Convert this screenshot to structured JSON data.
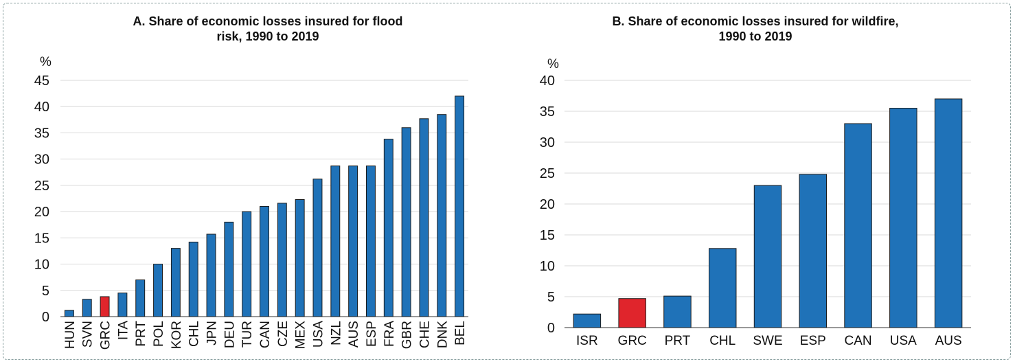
{
  "chart_data": [
    {
      "type": "bar",
      "title_line1": "A. Share of economic losses insured for flood",
      "title_line2": "risk, 1990 to 2019",
      "ylabel": "%",
      "ylim": [
        0,
        45
      ],
      "yticks": [
        0,
        5,
        10,
        15,
        20,
        25,
        30,
        35,
        40,
        45
      ],
      "grid": true,
      "categories": [
        "HUN",
        "SVN",
        "GRC",
        "ITA",
        "PRT",
        "POL",
        "KOR",
        "CHL",
        "JPN",
        "DEU",
        "TUR",
        "CAN",
        "CZE",
        "MEX",
        "USA",
        "NZL",
        "AUS",
        "ESP",
        "FRA",
        "GBR",
        "CHE",
        "DNK",
        "BEL"
      ],
      "values": [
        1.2,
        3.3,
        3.8,
        4.5,
        7.0,
        10.0,
        13.0,
        14.2,
        15.7,
        18.0,
        20.0,
        21.0,
        21.6,
        22.3,
        26.2,
        28.7,
        28.7,
        28.7,
        33.8,
        36.0,
        37.7,
        38.5,
        42.0
      ],
      "highlight": "GRC",
      "colors": {
        "bar": "#1f72b8",
        "highlight": "#e0252c",
        "grid": "#d9d9d9"
      }
    },
    {
      "type": "bar",
      "title_line1": "B. Share of economic losses insured for wildfire,",
      "title_line2": "1990 to 2019",
      "ylabel": "%",
      "ylim": [
        0,
        40
      ],
      "yticks": [
        0,
        5,
        10,
        15,
        20,
        25,
        30,
        35,
        40
      ],
      "grid": true,
      "categories": [
        "ISR",
        "GRC",
        "PRT",
        "CHL",
        "SWE",
        "ESP",
        "CAN",
        "USA",
        "AUS"
      ],
      "values": [
        2.2,
        4.7,
        5.1,
        12.8,
        23.0,
        24.8,
        33.0,
        35.5,
        37.0
      ],
      "highlight": "GRC",
      "colors": {
        "bar": "#1f72b8",
        "highlight": "#e0252c",
        "grid": "#d9d9d9"
      }
    }
  ]
}
